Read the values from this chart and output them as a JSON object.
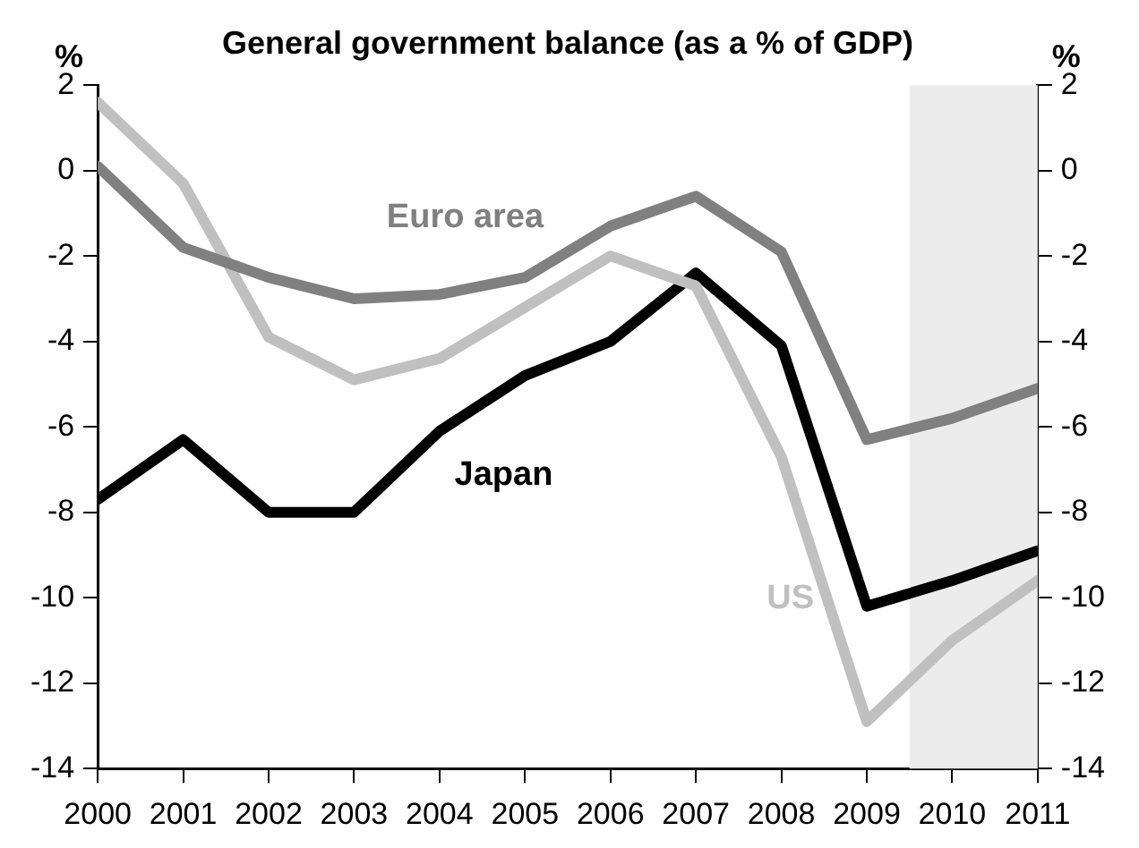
{
  "chart_data": {
    "type": "line",
    "title": "General government balance (as a % of GDP)",
    "ylabel": "%",
    "y2label": "%",
    "x": [
      2000,
      2001,
      2002,
      2003,
      2004,
      2005,
      2006,
      2007,
      2008,
      2009,
      2010,
      2011
    ],
    "xlim": [
      2000,
      2011
    ],
    "xticks": [
      2000,
      2001,
      2002,
      2003,
      2004,
      2005,
      2006,
      2007,
      2008,
      2009,
      2010,
      2011
    ],
    "ylim": [
      -14,
      2
    ],
    "yticks": [
      -14,
      -12,
      -10,
      -8,
      -6,
      -4,
      -2,
      0,
      2
    ],
    "y2lim": [
      -14,
      2
    ],
    "y2ticks": [
      -14,
      -12,
      -10,
      -8,
      -6,
      -4,
      -2,
      0,
      2
    ],
    "grid": false,
    "legend": false,
    "marker": "none",
    "line_style": "solid",
    "series": [
      {
        "name": "Euro area",
        "color": "#808080",
        "values": [
          0.1,
          -1.8,
          -2.5,
          -3.0,
          -2.9,
          -2.5,
          -1.3,
          -0.6,
          -1.9,
          -6.3,
          -5.8,
          -5.1
        ]
      },
      {
        "name": "US",
        "color": "#c0c0c0",
        "values": [
          1.6,
          -0.3,
          -3.9,
          -4.9,
          -4.4,
          -3.2,
          -2.0,
          -2.7,
          -6.7,
          -12.9,
          -11.0,
          -9.6
        ]
      },
      {
        "name": "Japan",
        "color": "#000000",
        "values": [
          -7.7,
          -6.3,
          -8.0,
          -8.0,
          -6.1,
          -4.8,
          -4.0,
          -2.4,
          -4.1,
          -10.2,
          -9.6,
          -8.9
        ]
      }
    ],
    "bands": [
      {
        "axis": "x",
        "from": 2009.5,
        "to": 2011,
        "color": "#ececec"
      }
    ]
  }
}
